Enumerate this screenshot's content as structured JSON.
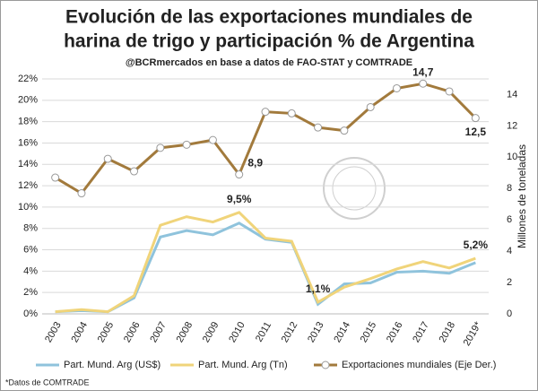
{
  "chart_data": {
    "type": "line",
    "title": [
      "Evolución de las exportaciones mundiales de",
      "harina de trigo y participación % de Argentina"
    ],
    "subtitle": "@BCRmercados en base a datos de FAO-STAT y COMTRADE",
    "y2_label": "Millones de toneladas",
    "footnote": "*Datos de COMTRADE",
    "categories": [
      "2003",
      "2004",
      "2005",
      "2006",
      "2007",
      "2008",
      "2009",
      "2010",
      "2011",
      "2012",
      "2013",
      "2014",
      "2015",
      "2016",
      "2017",
      "2018",
      "2019*"
    ],
    "ylim": [
      0,
      22
    ],
    "yticks": [
      {
        "value": 0,
        "label": "0%"
      },
      {
        "value": 2,
        "label": "2%"
      },
      {
        "value": 4,
        "label": "4%"
      },
      {
        "value": 6,
        "label": "6%"
      },
      {
        "value": 8,
        "label": "8%"
      },
      {
        "value": 10,
        "label": "10%"
      },
      {
        "value": 12,
        "label": "12%"
      },
      {
        "value": 14,
        "label": "14%"
      },
      {
        "value": 16,
        "label": "16%"
      },
      {
        "value": 18,
        "label": "18%"
      },
      {
        "value": 20,
        "label": "20%"
      },
      {
        "value": 22,
        "label": "22%"
      }
    ],
    "y2lim": [
      0,
      15
    ],
    "y2ticks": [
      0,
      2,
      4,
      6,
      8,
      10,
      12,
      14
    ],
    "grid": true,
    "legend": "bottom",
    "series": [
      {
        "name": "Part. Mund. Arg (US$)",
        "color": "#8fc3dc",
        "values": [
          0.2,
          0.3,
          0.2,
          1.5,
          7.2,
          7.8,
          7.4,
          8.5,
          7.0,
          6.7,
          0.9,
          2.8,
          2.9,
          3.9,
          4.0,
          3.8,
          4.8
        ]
      },
      {
        "name": "Part. Mund. Arg (Tn)",
        "color": "#f0d47a",
        "values": [
          0.2,
          0.4,
          0.2,
          1.7,
          8.3,
          9.1,
          8.6,
          9.5,
          7.1,
          6.8,
          1.1,
          2.5,
          3.3,
          4.2,
          4.9,
          4.3,
          5.2
        ],
        "value_labels": [
          null,
          null,
          null,
          null,
          null,
          null,
          null,
          "9,5%",
          null,
          null,
          "1,1%",
          null,
          null,
          null,
          null,
          null,
          "5,2%"
        ]
      },
      {
        "name": "Exportaciones mundiales (Eje Der.)",
        "color": "#a27a3c",
        "axis": "y2",
        "markers": true,
        "values": [
          8.7,
          7.7,
          9.9,
          9.1,
          10.6,
          10.8,
          11.1,
          8.9,
          12.9,
          12.8,
          11.9,
          11.7,
          13.2,
          14.4,
          14.7,
          14.2,
          12.5
        ],
        "value_labels": [
          null,
          null,
          null,
          null,
          null,
          null,
          null,
          "8,9",
          null,
          null,
          null,
          null,
          null,
          null,
          "14,7",
          null,
          "12,5"
        ]
      }
    ]
  }
}
